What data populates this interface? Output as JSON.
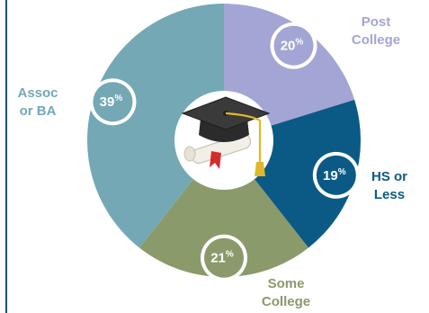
{
  "chart_data": {
    "type": "pie",
    "categories": [
      "Post College",
      "HS or Less",
      "Some College",
      "Assoc or BA"
    ],
    "values": [
      20,
      19,
      21,
      39
    ],
    "unit": "%",
    "colors": [
      "#a3a6d4",
      "#0b5a86",
      "#8a9a6a",
      "#74a8b5"
    ],
    "center_icon": "graduation-cap-diploma-icon",
    "legend": "labels-beside-slices",
    "slices": [
      {
        "label_lines": [
          "Post",
          "College"
        ],
        "value_text": "20",
        "unit_text": "%",
        "label_color": "#a3a6d4"
      },
      {
        "label_lines": [
          "HS or",
          "Less"
        ],
        "value_text": "19",
        "unit_text": "%",
        "label_color": "#0b5a86"
      },
      {
        "label_lines": [
          "Some",
          "College"
        ],
        "value_text": "21",
        "unit_text": "%",
        "label_color": "#8a9a6a"
      },
      {
        "label_lines": [
          "Assoc",
          "or BA"
        ],
        "value_text": "39",
        "unit_text": "%",
        "label_color": "#74a8b5"
      }
    ]
  }
}
